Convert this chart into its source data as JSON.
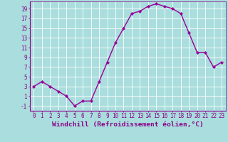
{
  "x": [
    0,
    1,
    2,
    3,
    4,
    5,
    6,
    7,
    8,
    9,
    10,
    11,
    12,
    13,
    14,
    15,
    16,
    17,
    18,
    19,
    20,
    21,
    22,
    23
  ],
  "y": [
    3,
    4,
    3,
    2,
    1,
    -1,
    0,
    0,
    4,
    8,
    12,
    15,
    18,
    18.5,
    19.5,
    20,
    19.5,
    19,
    18,
    14,
    10,
    10,
    7,
    8
  ],
  "line_color": "#990099",
  "marker_color": "#990099",
  "bg_color": "#aadddd",
  "grid_color": "#ffffff",
  "xlabel": "Windchill (Refroidissement éolien,°C)",
  "xlabel_color": "#880088",
  "tick_color": "#880088",
  "ylim": [
    -2,
    20.5
  ],
  "yticks": [
    -1,
    1,
    3,
    5,
    7,
    9,
    11,
    13,
    15,
    17,
    19
  ],
  "xticks": [
    0,
    1,
    2,
    3,
    4,
    5,
    6,
    7,
    8,
    9,
    10,
    11,
    12,
    13,
    14,
    15,
    16,
    17,
    18,
    19,
    20,
    21,
    22,
    23
  ],
  "tick_fontsize": 5.5,
  "xlabel_fontsize": 6.8,
  "linewidth": 1.0,
  "markersize": 2.2
}
